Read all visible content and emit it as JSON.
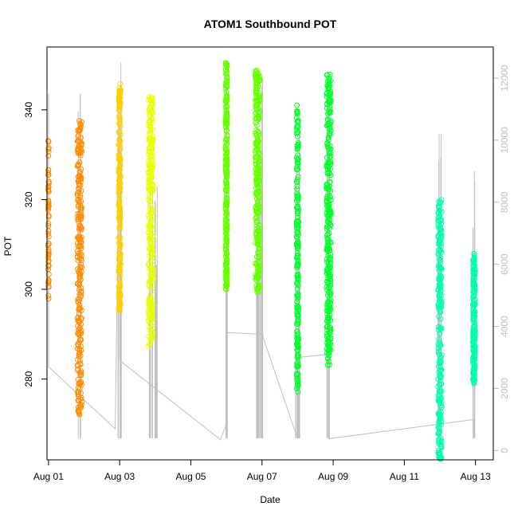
{
  "chart_data": {
    "type": "scatter",
    "title": "ATOM1 Southbound POT",
    "xlabel": "Date",
    "ylabel": "POT",
    "x_range": [
      "2024-07-31T23:00:00",
      "2024-08-13T12:00:00"
    ],
    "ylim": [
      262,
      354
    ],
    "y2lim": [
      -300,
      13000
    ],
    "x_ticks": [
      {
        "date": "2024-08-01",
        "label": "Aug 01"
      },
      {
        "date": "2024-08-03",
        "label": "Aug 03"
      },
      {
        "date": "2024-08-05",
        "label": "Aug 05"
      },
      {
        "date": "2024-08-07",
        "label": "Aug 07"
      },
      {
        "date": "2024-08-09",
        "label": "Aug 09"
      },
      {
        "date": "2024-08-11",
        "label": "Aug 11"
      },
      {
        "date": "2024-08-13",
        "label": "Aug 13"
      }
    ],
    "y_ticks": [
      280,
      300,
      320,
      340
    ],
    "y2_ticks": [
      0,
      2000,
      4000,
      6000,
      8000,
      10000,
      12000
    ],
    "grid": false,
    "legend": "none",
    "point_series": [
      {
        "color": "#ff8c00",
        "bursts": [
          {
            "t": "2024-08-01T00:00:00",
            "ymin": 297,
            "ymax": 334,
            "n": 60,
            "jitter": 0.02
          },
          {
            "t": "2024-08-01T21:00:00",
            "ymin": 272,
            "ymax": 338,
            "n": 260,
            "jitter": 0.12
          }
        ]
      },
      {
        "color": "#ffd000",
        "bursts": [
          {
            "t": "2024-08-03T00:00:00",
            "ymin": 295,
            "ymax": 346,
            "n": 200,
            "jitter": 0.05
          }
        ]
      },
      {
        "color": "#e8ff00",
        "bursts": [
          {
            "t": "2024-08-03T21:00:00",
            "ymin": 287,
            "ymax": 343,
            "n": 260,
            "jitter": 0.12
          }
        ]
      },
      {
        "color": "#66ff00",
        "bursts": [
          {
            "t": "2024-08-06T00:00:00",
            "ymin": 300,
            "ymax": 351,
            "n": 260,
            "jitter": 0.05
          },
          {
            "t": "2024-08-06T21:00:00",
            "ymin": 299,
            "ymax": 349,
            "n": 280,
            "jitter": 0.12
          }
        ]
      },
      {
        "color": "#00ff2a",
        "bursts": [
          {
            "t": "2024-08-08T00:00:00",
            "ymin": 277,
            "ymax": 341,
            "n": 200,
            "jitter": 0.05
          },
          {
            "t": "2024-08-08T21:00:00",
            "ymin": 283,
            "ymax": 348,
            "n": 300,
            "jitter": 0.12
          }
        ]
      },
      {
        "color": "#00ffaa",
        "bursts": [
          {
            "t": "2024-08-12T00:00:00",
            "ymin": 262,
            "ymax": 320,
            "n": 240,
            "jitter": 0.1
          },
          {
            "t": "2024-08-12T23:00:00",
            "ymin": 279,
            "ymax": 308,
            "n": 200,
            "jitter": 0.06
          }
        ]
      }
    ],
    "line_series": {
      "color": "#bfbfbf",
      "axis": "right",
      "points": [
        {
          "t": "2024-08-01T00:00:00",
          "v": 11500
        },
        {
          "t": "2024-08-01T00:00:00",
          "v": 2700
        },
        {
          "t": "2024-08-02T21:00:00",
          "v": 700
        },
        {
          "t": "2024-08-03T00:00:00",
          "v": 11200
        },
        {
          "t": "2024-08-03T00:00:00",
          "v": 2900
        },
        {
          "t": "2024-08-05T20:00:00",
          "v": 350
        },
        {
          "t": "2024-08-06T00:00:00",
          "v": 850
        },
        {
          "t": "2024-08-06T00:00:00",
          "v": 3800
        },
        {
          "t": "2024-08-07T00:00:00",
          "v": 3750
        },
        {
          "t": "2024-08-08T00:00:00",
          "v": 380
        },
        {
          "t": "2024-08-08T00:00:00",
          "v": 3000
        },
        {
          "t": "2024-08-08T21:00:00",
          "v": 3100
        },
        {
          "t": "2024-08-08T21:00:00",
          "v": 380
        },
        {
          "t": "2024-08-12T23:00:00",
          "v": 1000
        },
        {
          "t": "2024-08-12T23:00:00",
          "v": 400
        }
      ],
      "spikes": [
        {
          "t": "2024-08-01T21:00:00",
          "vmin": 400,
          "vmax": 11500
        },
        {
          "t": "2024-08-03T00:00:00",
          "vmin": 400,
          "vmax": 12500
        },
        {
          "t": "2024-08-03T21:00:00",
          "vmin": 400,
          "vmax": 9000
        },
        {
          "t": "2024-08-04T00:00:00",
          "vmin": 400,
          "vmax": 8500
        },
        {
          "t": "2024-08-06T00:00:00",
          "vmin": 400,
          "vmax": 12500
        },
        {
          "t": "2024-08-06T21:00:00",
          "vmin": 400,
          "vmax": 10500
        },
        {
          "t": "2024-08-07T00:00:00",
          "vmin": 400,
          "vmax": 12000
        },
        {
          "t": "2024-08-08T00:00:00",
          "vmin": 400,
          "vmax": 10500
        },
        {
          "t": "2024-08-08T21:00:00",
          "vmin": 400,
          "vmax": 12000
        },
        {
          "t": "2024-08-12T00:00:00",
          "vmin": 400,
          "vmax": 10200
        },
        {
          "t": "2024-08-12T23:00:00",
          "vmin": 400,
          "vmax": 9000
        }
      ]
    }
  }
}
